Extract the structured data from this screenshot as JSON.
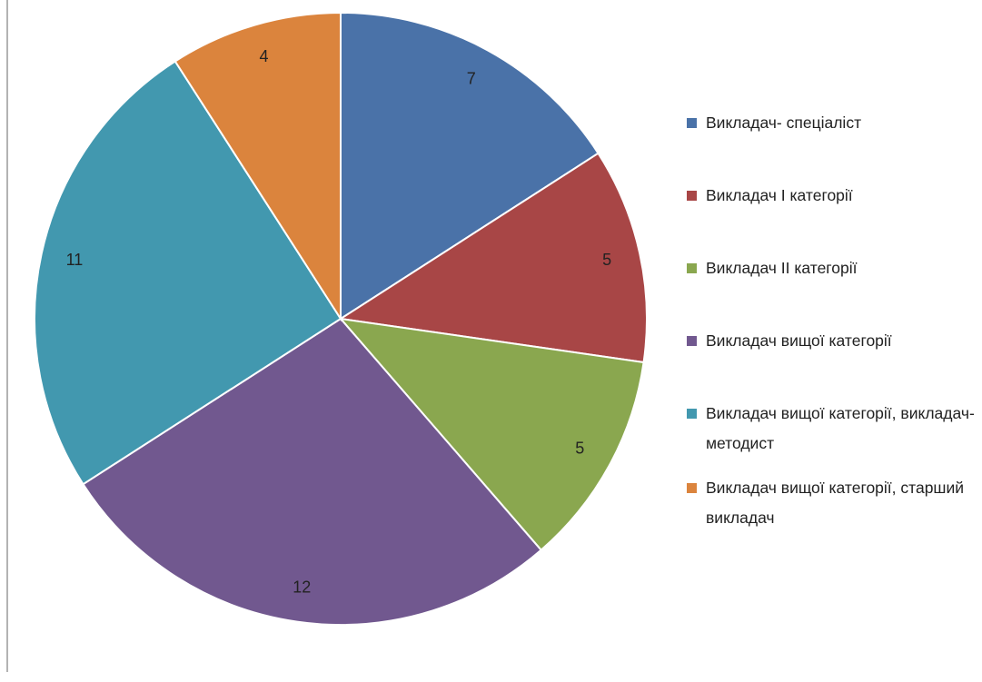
{
  "chart_data": {
    "type": "pie",
    "categories": [
      "Викладач- спеціаліст",
      "Викладач I категорії",
      "Викладач II категорії",
      "Викладач вищої категорії",
      "Викладач вищої категорії, викладач-методист",
      "Викладач вищої категорії, старший викладач"
    ],
    "values": [
      7,
      5,
      5,
      12,
      11,
      4
    ],
    "colors": [
      "#4a72a8",
      "#a84646",
      "#8aa74f",
      "#71588f",
      "#4298af",
      "#db843d"
    ],
    "legend": "right"
  }
}
